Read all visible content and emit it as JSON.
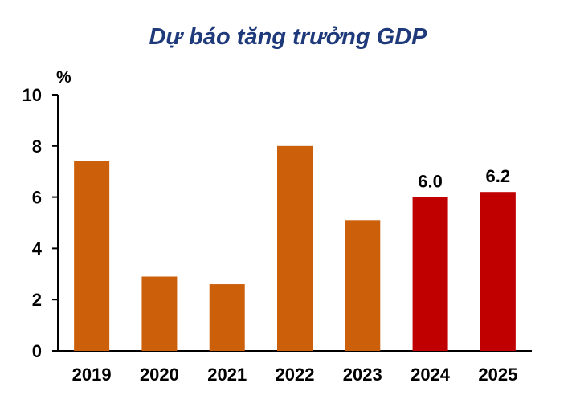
{
  "chart_data": {
    "type": "bar",
    "title": "Dự báo tăng trưởng GDP",
    "ylabel": "%",
    "xlabel": "",
    "categories": [
      "2019",
      "2020",
      "2021",
      "2022",
      "2023",
      "2024",
      "2025"
    ],
    "values": [
      7.4,
      2.9,
      2.6,
      8.0,
      5.1,
      6.0,
      6.2
    ],
    "data_labels": [
      "",
      "",
      "",
      "",
      "",
      "6.0",
      "6.2"
    ],
    "bar_colors": [
      "#cc5f0a",
      "#cc5f0a",
      "#cc5f0a",
      "#cc5f0a",
      "#cc5f0a",
      "#c00000",
      "#c00000"
    ],
    "ylim": [
      0,
      10
    ],
    "yticks": [
      "0",
      "2",
      "4",
      "6",
      "8",
      "10"
    ],
    "grid": false,
    "legend": "none"
  }
}
